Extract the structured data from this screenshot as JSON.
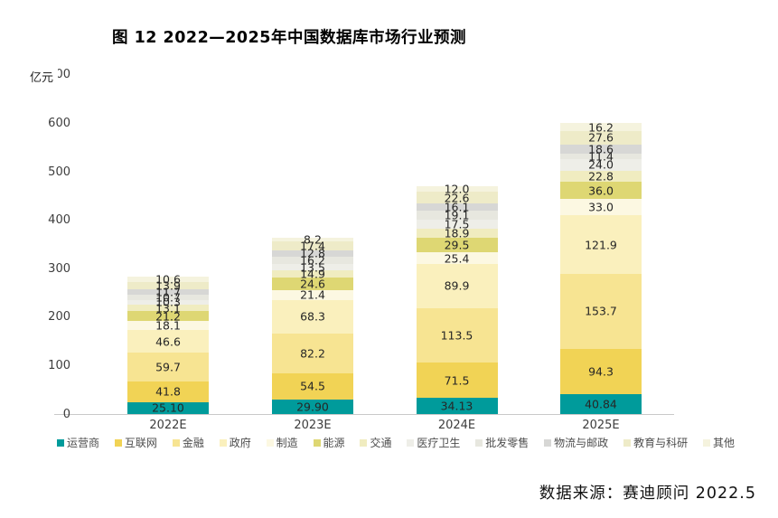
{
  "title": "图 12  2022—2025年中国数据库市场行业预测",
  "y_axis": {
    "unit": "亿元",
    "ticks": [
      700,
      600,
      500,
      400,
      300,
      200,
      100,
      0
    ]
  },
  "source": "数据来源：赛迪顾问  2022.5",
  "chart_data": {
    "type": "bar",
    "stacked": true,
    "title": "图 12 2022—2025年中国数据库市场行业预测",
    "ylabel": "亿元",
    "ylim": [
      0,
      700
    ],
    "grid": false,
    "legend_position": "bottom",
    "categories": [
      "2022E",
      "2023E",
      "2024E",
      "2025E"
    ],
    "series": [
      {
        "name": "运营商",
        "color": "#009B9B",
        "values": [
          25.1,
          29.9,
          34.13,
          40.84
        ],
        "labels": [
          "25.10",
          "29.90",
          "34.13",
          "40.84"
        ]
      },
      {
        "name": "互联网",
        "color": "#F1D355",
        "values": [
          41.8,
          54.5,
          71.5,
          94.3
        ],
        "labels": [
          "41.8",
          "54.5",
          "71.5",
          "94.3"
        ]
      },
      {
        "name": "金融",
        "color": "#F7E492",
        "values": [
          59.7,
          82.2,
          113.5,
          153.7
        ],
        "labels": [
          "59.7",
          "82.2",
          "113.5",
          "153.7"
        ]
      },
      {
        "name": "政府",
        "color": "#FAF0BD",
        "values": [
          46.6,
          68.3,
          89.9,
          121.9
        ],
        "labels": [
          "46.6",
          "68.3",
          "89.9",
          "121.9"
        ]
      },
      {
        "name": "制造",
        "color": "#FCF8E2",
        "values": [
          18.1,
          21.4,
          25.4,
          33.0
        ],
        "labels": [
          "18.1",
          "21.4",
          "25.4",
          "33.0"
        ]
      },
      {
        "name": "能源",
        "color": "#DED773",
        "values": [
          21.2,
          24.6,
          29.5,
          36.0
        ],
        "labels": [
          "21.2",
          "24.6",
          "29.5",
          "36.0"
        ]
      },
      {
        "name": "交通",
        "color": "#F0ECC0",
        "values": [
          13.1,
          14.9,
          18.9,
          22.8
        ],
        "labels": [
          "13.1",
          "14.9",
          "18.9",
          "22.8"
        ]
      },
      {
        "name": "医疗卫生",
        "color": "#EEEEE8",
        "values": [
          10.3,
          13.5,
          17.5,
          24.0
        ],
        "labels": [
          "10.3",
          "13.5",
          "17.5",
          "24.0"
        ]
      },
      {
        "name": "批发零售",
        "color": "#E7E7DF",
        "values": [
          10.7,
          16.2,
          19.1,
          11.4
        ],
        "labels": [
          "10.7",
          "16.2",
          "19.1",
          "11.4"
        ]
      },
      {
        "name": "物流与邮政",
        "color": "#D7D7D5",
        "values": [
          11.7,
          12.8,
          16.1,
          18.6
        ],
        "labels": [
          "11.7",
          "12.8",
          "16.1",
          "18.6"
        ]
      },
      {
        "name": "教育与科研",
        "color": "#EEEBC8",
        "values": [
          13.9,
          17.4,
          22.6,
          27.6
        ],
        "labels": [
          "13.9",
          "17.4",
          "22.6",
          "27.6"
        ]
      },
      {
        "name": "其他",
        "color": "#F5F3DE",
        "values": [
          10.6,
          8.2,
          12.0,
          16.2
        ],
        "labels": [
          "10.6",
          "8.2",
          "12.0",
          "16.2"
        ]
      }
    ]
  }
}
